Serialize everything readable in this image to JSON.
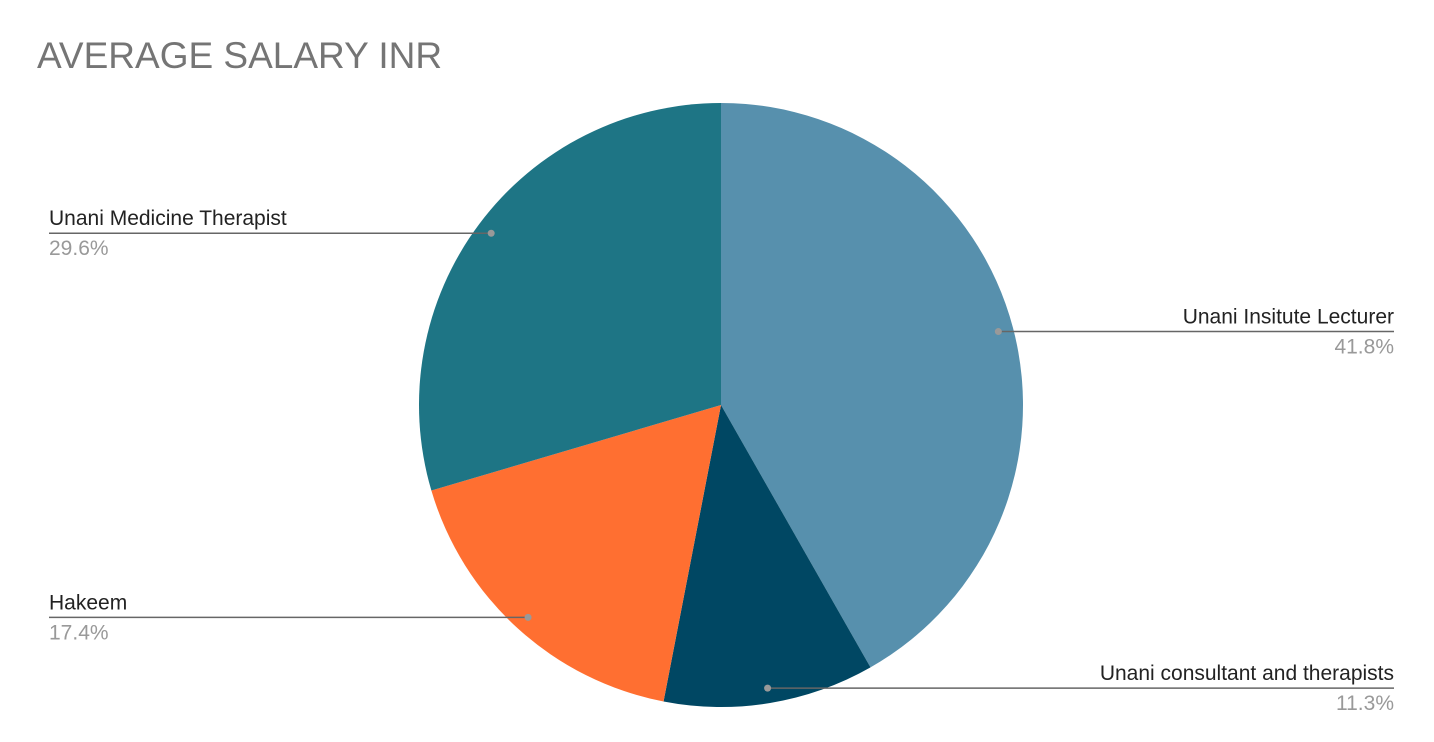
{
  "chart_data": {
    "type": "pie",
    "title": "AVERAGE SALARY INR",
    "categories": [
      "Unani Insitute Lecturer",
      "Unani consultant and therapists",
      "Hakeem",
      "Unani Medicine Therapist"
    ],
    "values": [
      41.8,
      11.3,
      17.4,
      29.6
    ],
    "value_labels": [
      "41.8%",
      "11.3%",
      "17.4%",
      "29.6%"
    ],
    "colors": [
      "#5790ad",
      "#004763",
      "#ff6f31",
      "#1e7585"
    ]
  }
}
